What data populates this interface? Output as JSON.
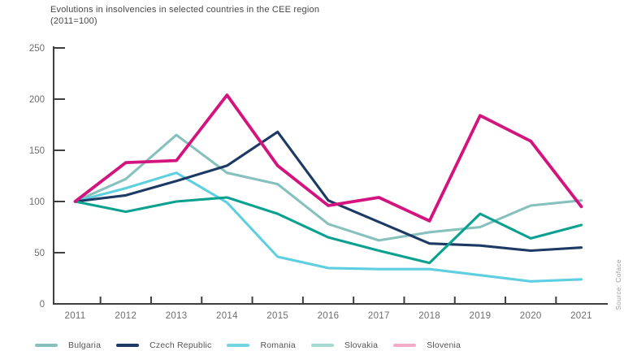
{
  "header": {
    "title": "Evolutions in insolvencies in selected countries in the CEE region (2011=100)"
  },
  "source_note": "Source: Coface",
  "colors": {
    "axis": "#3f3f3f",
    "tick_label": "#6e6e6e",
    "title_text": "#474747",
    "legend_label": "#555555",
    "source_text": "#9a9fa2"
  },
  "chart_data": {
    "type": "line",
    "title": "Evolutions in insolvencies in selected countries in the CEE region (2011=100)",
    "categories": [
      "2011",
      "2012",
      "2013",
      "2014",
      "2015",
      "2016",
      "2017",
      "2018",
      "2019",
      "2020",
      "2021"
    ],
    "series": [
      {
        "name": "Bulgaria",
        "color": "#87c1bd",
        "legend_color": "#87c1bd",
        "values": [
          100,
          122,
          165,
          128,
          117,
          78,
          62,
          70,
          75,
          96,
          101
        ]
      },
      {
        "name": "Romania",
        "color": "#5ecfe0",
        "legend_color": "#74d5e3",
        "values": [
          100,
          113,
          128,
          99,
          46,
          35,
          34,
          34,
          28,
          22,
          24
        ]
      },
      {
        "name": "Czech Republic",
        "color": "#1c3a64",
        "legend_color": "#1c3a64",
        "values": [
          100,
          106,
          120,
          135,
          168,
          101,
          80,
          59,
          57,
          52,
          55
        ]
      },
      {
        "name": "Slovakia",
        "color": "#0aa191",
        "legend_color": "#a6d9d1",
        "values": [
          100,
          90,
          100,
          104,
          88,
          65,
          52,
          40,
          88,
          64,
          77
        ]
      },
      {
        "name": "Slovenia",
        "color": "#d3137e",
        "legend_color": "#f2abc9",
        "values": [
          100,
          138,
          140,
          204,
          135,
          96,
          104,
          81,
          184,
          159,
          95
        ]
      }
    ],
    "legend_order": [
      "Bulgaria",
      "Czech Republic",
      "Romania",
      "Slovakia",
      "Slovenia"
    ],
    "ylim": [
      0,
      250
    ],
    "yticks": [
      0,
      50,
      100,
      150,
      200,
      250
    ],
    "grid": false,
    "legend_position": "bottom",
    "source": "Source: Coface"
  }
}
